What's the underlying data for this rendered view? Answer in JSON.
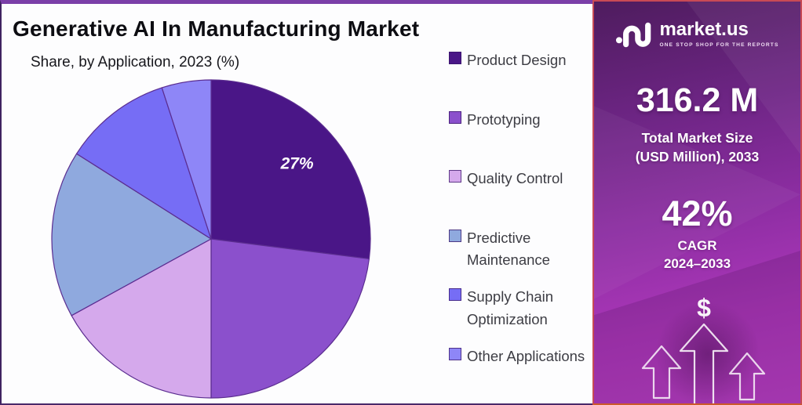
{
  "title": "Generative AI In Manufacturing Market",
  "subtitle": "Share, by Application, 2023 (%)",
  "chart_data": {
    "type": "pie",
    "title": "Generative AI In Manufacturing Market",
    "subtitle": "Share, by Application, 2023 (%)",
    "unit": "%",
    "start_angle_deg": 0,
    "direction": "clockwise",
    "legend_position": "right",
    "slice_stroke_color": "#5b2d90",
    "data_label_color": "#ffffff",
    "slices": [
      {
        "label": "Product Design",
        "value": 27,
        "color": "#4a1687",
        "data_label": "27%"
      },
      {
        "label": "Prototyping",
        "value": 23,
        "color": "#8b50cc",
        "data_label": null
      },
      {
        "label": "Quality Control",
        "value": 17,
        "color": "#d5a9ec",
        "data_label": null
      },
      {
        "label": "Predictive Maintenance",
        "value": 17,
        "color": "#8fa9de",
        "data_label": null
      },
      {
        "label": "Supply Chain Optimization",
        "value": 11,
        "color": "#766df5",
        "data_label": null
      },
      {
        "label": "Other Applications",
        "value": 5,
        "color": "#8e86f7",
        "data_label": null
      }
    ]
  },
  "side_panel": {
    "logo_name": "market.us",
    "logo_tagline": "ONE STOP SHOP FOR THE REPORTS",
    "market_size_value": "316.2 M",
    "market_size_caption_line1": "Total Market Size",
    "market_size_caption_line2": "(USD Million), 2033",
    "cagr_value": "42%",
    "cagr_caption_line1": "CAGR",
    "cagr_caption_line2": "2024–2033",
    "currency_symbol": "$",
    "panel_top_color": "#4e1c5e",
    "panel_bottom_color": "#bb41c6",
    "border_color": "#c84a55"
  }
}
